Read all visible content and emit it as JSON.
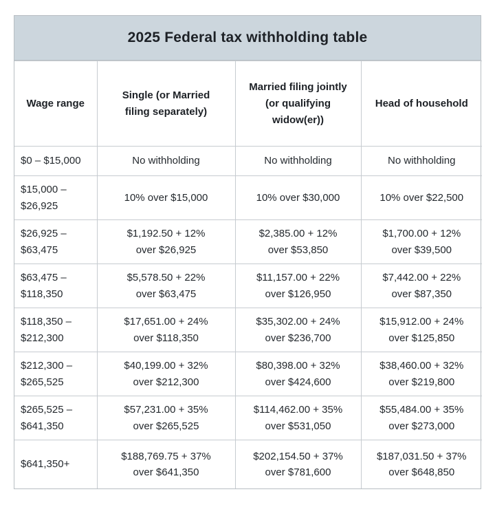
{
  "title": "2025 Federal tax withholding table",
  "colors": {
    "title_bar_bg": "#ccd6dd",
    "grid_border": "#c6cbd0",
    "text": "#24292e"
  },
  "table": {
    "columns": [
      "Wage range",
      "Single (or Married\nfiling separately)",
      "Married filing jointly\n(or qualifying\nwidow(er))",
      "Head of household"
    ],
    "rows": [
      [
        "$0 – $15,000",
        "No withholding",
        "No withholding",
        "No withholding"
      ],
      [
        "$15,000 –\n$26,925",
        "10% over $15,000",
        "10% over $30,000",
        "10% over $22,500"
      ],
      [
        "$26,925 –\n$63,475",
        "$1,192.50 + 12%\nover $26,925",
        "$2,385.00 + 12%\nover $53,850",
        "$1,700.00 + 12%\nover $39,500"
      ],
      [
        "$63,475 –\n$118,350",
        "$5,578.50 + 22%\nover $63,475",
        "$11,157.00 + 22%\nover $126,950",
        "$7,442.00 + 22%\nover $87,350"
      ],
      [
        "$118,350 –\n$212,300",
        "$17,651.00 + 24%\nover $118,350",
        "$35,302.00 + 24%\nover $236,700",
        "$15,912.00 + 24%\nover $125,850"
      ],
      [
        "$212,300 –\n$265,525",
        "$40,199.00 + 32%\nover $212,300",
        "$80,398.00 + 32%\nover $424,600",
        "$38,460.00 + 32%\nover $219,800"
      ],
      [
        "$265,525 –\n$641,350",
        "$57,231.00 + 35%\nover $265,525",
        "$114,462.00 + 35%\nover $531,050",
        "$55,484.00 + 35%\nover $273,000"
      ],
      [
        "$641,350+",
        "$188,769.75 + 37%\nover $641,350",
        "$202,154.50 + 37%\nover $781,600",
        "$187,031.50 + 37%\nover $648,850"
      ]
    ]
  }
}
